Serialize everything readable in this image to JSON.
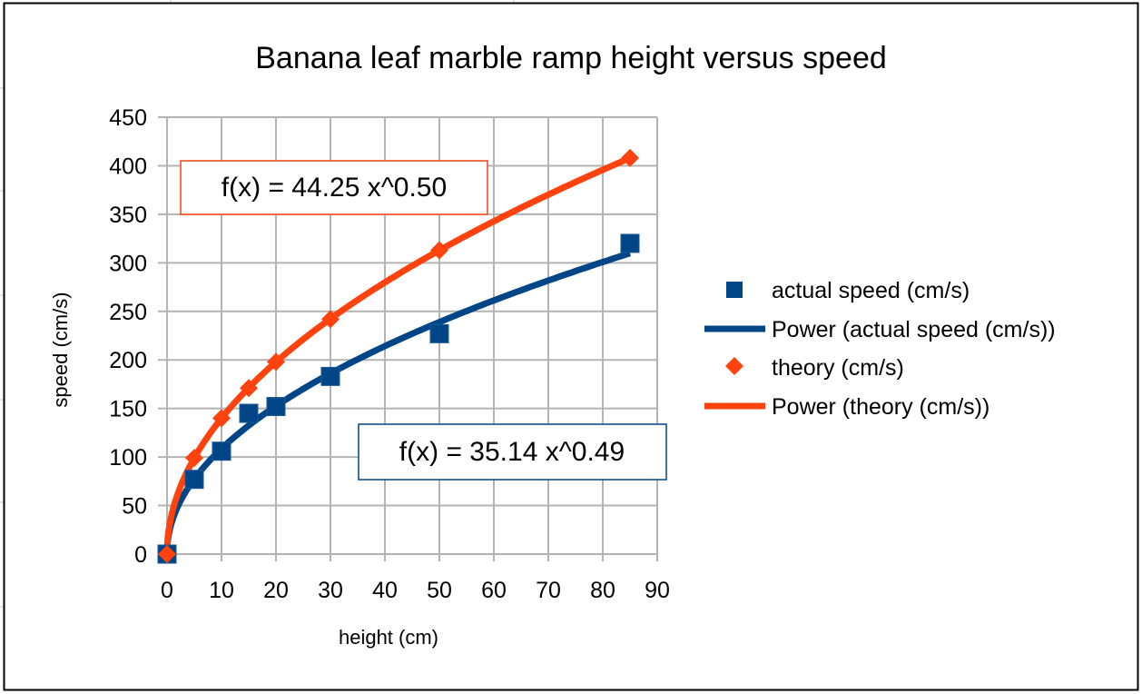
{
  "chart_data": {
    "type": "scatter",
    "title": "Banana leaf marble ramp height versus speed",
    "xlabel": "height (cm)",
    "ylabel": "speed  (cm/s)",
    "xlim": [
      0,
      90
    ],
    "ylim": [
      0,
      450
    ],
    "xticks": [
      "0",
      "10",
      "20",
      "30",
      "40",
      "50",
      "60",
      "70",
      "80",
      "90"
    ],
    "yticks": [
      "0",
      "50",
      "100",
      "150",
      "200",
      "250",
      "300",
      "350",
      "400",
      "450"
    ],
    "grid": true,
    "legend_position": "right",
    "series": [
      {
        "name": "actual speed (cm/s)",
        "marker": "square",
        "color": "#004586",
        "x": [
          0,
          5,
          10,
          15,
          20,
          30,
          50,
          85
        ],
        "y": [
          0,
          77,
          106,
          145,
          152,
          183,
          227,
          320
        ]
      },
      {
        "name": "theory (cm/s)",
        "marker": "diamond",
        "color": "#ff420e",
        "x": [
          0,
          5,
          10,
          15,
          20,
          30,
          50,
          85
        ],
        "y": [
          0,
          99,
          140,
          171,
          198,
          242,
          313,
          408
        ]
      }
    ],
    "trendlines": [
      {
        "name": "Power (actual speed (cm/s))",
        "color": "#004586",
        "a": 35.14,
        "b": 0.49,
        "equation": "f(x) = 35.14 x^0.49"
      },
      {
        "name": "Power (theory (cm/s))",
        "color": "#ff420e",
        "a": 44.25,
        "b": 0.5,
        "equation": "f(x) = 44.25 x^0.50"
      }
    ],
    "legend": [
      "actual speed (cm/s)",
      "Power (actual speed (cm/s))",
      "theory (cm/s)",
      "Power (theory (cm/s))"
    ]
  }
}
